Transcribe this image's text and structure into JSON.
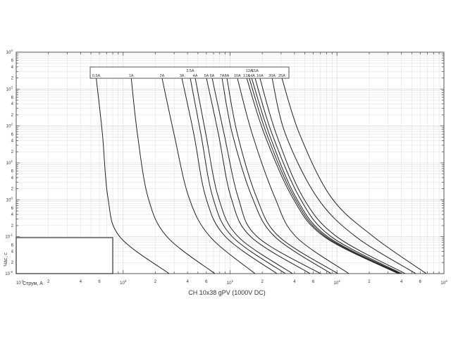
{
  "chart_data": {
    "type": "line",
    "title": "CH 10x38 gPV (1000V DC)",
    "xlabel": "Струм, А",
    "ylabel": "Час, с",
    "x_scale": "log",
    "y_scale": "log",
    "xlim": [
      0.1,
      1000
    ],
    "ylim": [
      0.01,
      10000
    ],
    "grid": true,
    "legend": "top-center",
    "x_major_ticks": [
      {
        "base": "10",
        "exp": "-1"
      },
      {
        "base": "10",
        "exp": "0"
      },
      {
        "base": "10",
        "exp": "1"
      },
      {
        "base": "10",
        "exp": "2"
      },
      {
        "base": "10",
        "exp": "3"
      }
    ],
    "y_major_ticks": [
      {
        "base": "10",
        "exp": "-2"
      },
      {
        "base": "10",
        "exp": "-1"
      },
      {
        "base": "10",
        "exp": "0"
      },
      {
        "base": "10",
        "exp": "1"
      },
      {
        "base": "10",
        "exp": "2"
      },
      {
        "base": "10",
        "exp": "3"
      },
      {
        "base": "10",
        "exp": "4"
      }
    ],
    "minor_tick_labels": [
      "2",
      "4",
      "6"
    ],
    "t": [
      2000,
      61,
      1.16,
      0.1,
      0.01
    ],
    "series": [
      {
        "name": "0.5A",
        "I": [
          0.56,
          0.64,
          0.72,
          0.93,
          2.69
        ]
      },
      {
        "name": "1A",
        "I": [
          1.19,
          1.36,
          1.71,
          2.57,
          7.2
        ]
      },
      {
        "name": "2A",
        "I": [
          2.31,
          2.99,
          4.12,
          6.5,
          17.1
        ]
      },
      {
        "name": "3A",
        "I": [
          3.54,
          4.58,
          5.93,
          9.06,
          27.4
        ]
      },
      {
        "name": "3.5A",
        "I": [
          4.24,
          5.33,
          6.9,
          10.5,
          32.9
        ],
        "upper": true
      },
      {
        "name": "4A",
        "I": [
          4.72,
          5.93,
          7.78,
          11.9,
          38.3
        ]
      },
      {
        "name": "5A",
        "I": [
          6.01,
          7.78,
          10.2,
          15.6,
          56
        ]
      },
      {
        "name": "6A",
        "I": [
          6.79,
          8.79,
          11.9,
          17.9,
          70
        ]
      },
      {
        "name": "7A",
        "I": [
          8.4,
          10.5,
          16.1,
          26.2,
          88
        ]
      },
      {
        "name": "8A",
        "I": [
          9.34,
          11.7,
          17.7,
          28.7,
          102
        ]
      },
      {
        "name": "10A",
        "I": [
          11.7,
          16.1,
          26.2,
          41.3,
          129
        ]
      },
      {
        "name": "12A",
        "I": [
          14.3,
          20.9,
          38.3,
          75.9,
          373
        ]
      },
      {
        "name": "13A",
        "I": [
          15.1,
          22.0,
          39.8,
          78.5,
          380
        ],
        "upper": true
      },
      {
        "name": "14A",
        "I": [
          15.9,
          23.2,
          41.3,
          81.8,
          390
        ]
      },
      {
        "name": "15A",
        "I": [
          17.1,
          24.7,
          44.6,
          88.3,
          403
        ],
        "upper": true
      },
      {
        "name": "16A",
        "I": [
          19.0,
          27.0,
          48.1,
          99.6,
          434
        ]
      },
      {
        "name": "20A",
        "I": [
          24.7,
          32.9,
          65.1,
          150,
          545
        ]
      },
      {
        "name": "25A",
        "I": [
          30.5,
          44.6,
          88.3,
          219,
          684
        ]
      }
    ],
    "colors": {
      "curve": "#222222",
      "grid": "#dddddd",
      "axis": "#555555"
    }
  }
}
